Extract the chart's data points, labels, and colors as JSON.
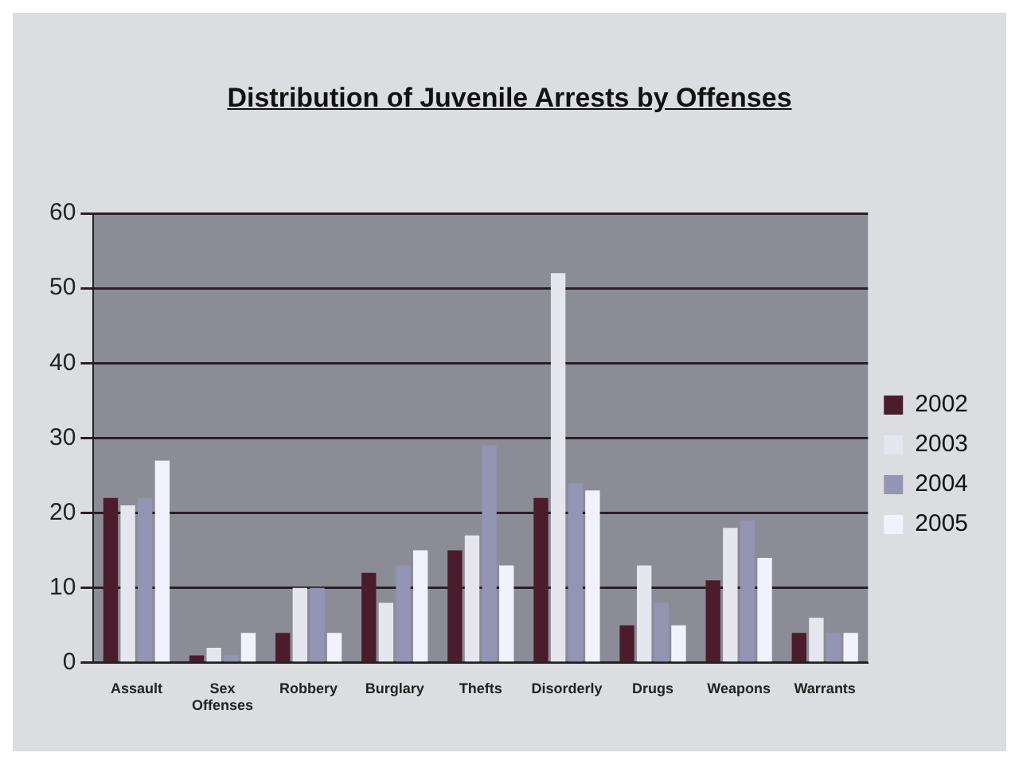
{
  "chart_data": {
    "type": "bar",
    "title": "Distribution of Juvenile Arrests by Offenses",
    "categories": [
      "Assault",
      "Sex Offenses",
      "Robbery",
      "Burglary",
      "Thefts",
      "Disorderly",
      "Drugs",
      "Weapons",
      "Warrants"
    ],
    "series": [
      {
        "name": "2002",
        "color": "#4a1c2c",
        "values": [
          22,
          1,
          4,
          12,
          15,
          22,
          5,
          11,
          4
        ]
      },
      {
        "name": "2003",
        "color": "#e6e6ee",
        "values": [
          21,
          2,
          10,
          8,
          17,
          52,
          13,
          18,
          6
        ]
      },
      {
        "name": "2004",
        "color": "#9494b4",
        "values": [
          22,
          1,
          10,
          13,
          29,
          24,
          8,
          19,
          4
        ]
      },
      {
        "name": "2005",
        "color": "#f2f2ff",
        "values": [
          27,
          4,
          4,
          15,
          13,
          23,
          5,
          14,
          4
        ]
      }
    ],
    "ylim": [
      0,
      60
    ],
    "yticks": [
      0,
      10,
      20,
      30,
      40,
      50,
      60
    ],
    "grid": "y",
    "legend": "right"
  }
}
